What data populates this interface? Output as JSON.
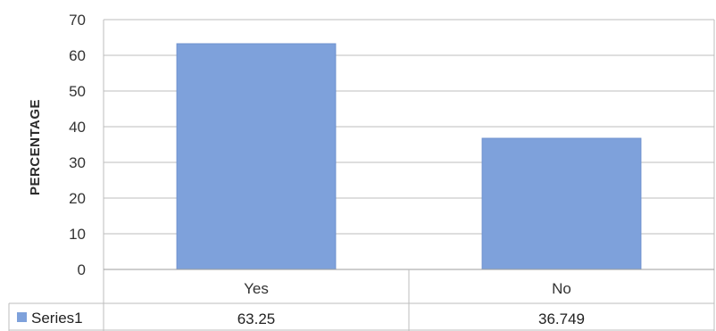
{
  "chart_data": {
    "type": "bar",
    "title": "",
    "xlabel": "",
    "ylabel": "PERCENTAGE",
    "ylim": [
      0,
      70
    ],
    "yticks": [
      0,
      10,
      20,
      30,
      40,
      50,
      60,
      70
    ],
    "grid": true,
    "categories": [
      "Yes",
      "No"
    ],
    "series": [
      {
        "name": "Series1",
        "values": [
          63.25,
          36.749
        ],
        "value_labels": [
          "63.25",
          "36.749"
        ]
      }
    ],
    "data_table": true,
    "bar_color": "#7ea1db",
    "bar_edge_color": "#6f92cf"
  }
}
